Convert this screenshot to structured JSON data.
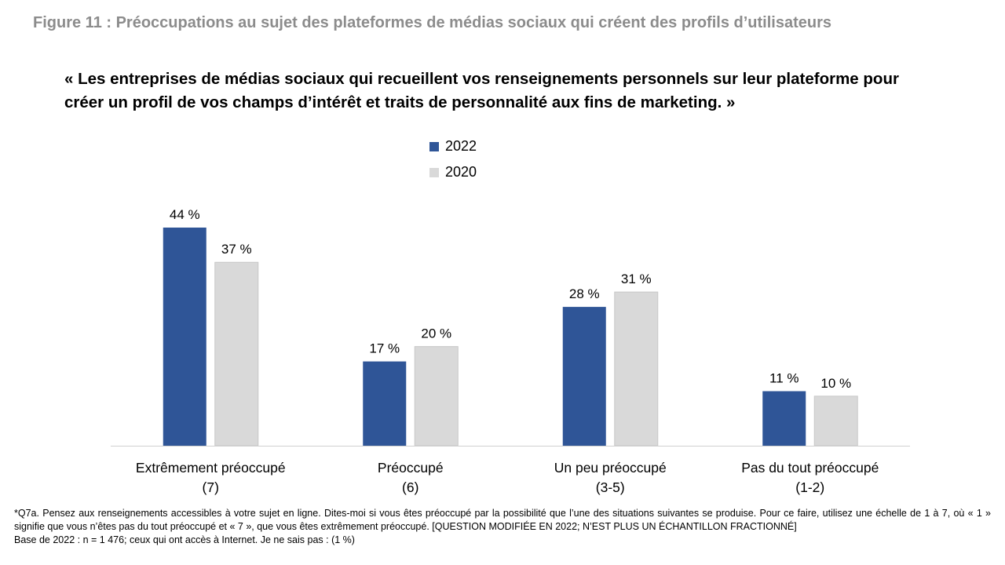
{
  "figure_title": "Figure 11 : Préoccupations au sujet des plateformes de médias sociaux qui créent des profils d’utilisateurs",
  "subtitle": "« Les entreprises de médias sociaux qui recueillent vos renseignements personnels sur leur plateforme pour créer un profil de vos champs d’intérêt et traits de personnalité aux fins de marketing. »",
  "footnote": {
    "question": "*Q7a. Pensez aux renseignements accessibles à votre sujet en ligne. Dites-moi si vous êtes préoccupé par la possibilité que l’une des situations suivantes se produise. Pour ce faire, utilisez une échelle de 1 à 7, où « 1 » signifie que vous n’êtes pas du tout préoccupé et « 7 », que vous êtes extrêmement préoccupé. [QUESTION MODIFIÉE EN 2022; N’EST PLUS UN ÉCHANTILLON FRACTIONNÉ]",
    "base": "Base de 2022 : n = 1 476; ceux qui ont accès à Internet. Je ne sais pas : (1 %)"
  },
  "chart_data": {
    "type": "bar",
    "categories": [
      [
        "Extrêmement préoccupé",
        "(7)"
      ],
      [
        "Préoccupé",
        "(6)"
      ],
      [
        "Un peu préoccupé",
        "(3-5)"
      ],
      [
        "Pas du tout préoccupé",
        "(1-2)"
      ]
    ],
    "series": [
      {
        "name": "2022",
        "values": [
          44,
          17,
          28,
          11
        ],
        "labels": [
          "44 %",
          "17 %",
          "28 %",
          "11 %"
        ],
        "color": "#2f5597"
      },
      {
        "name": "2020",
        "values": [
          37,
          20,
          31,
          10
        ],
        "labels": [
          "37 %",
          "20 %",
          "31 %",
          "10 %"
        ],
        "color": "#d9d9d9"
      }
    ],
    "legend_position": "top-center",
    "grid": false,
    "ylim": [
      0,
      44
    ]
  }
}
